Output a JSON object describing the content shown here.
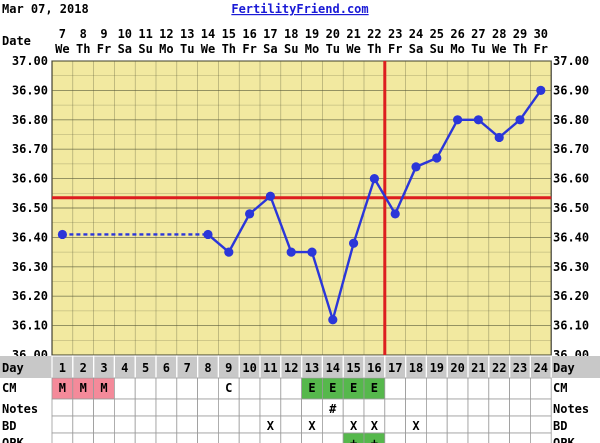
{
  "header": {
    "date": "Mar 07, 2018",
    "site": "FertilityFriend.com"
  },
  "labels": {
    "date_row": "Date",
    "day_row": "Day",
    "cm_row": "CM",
    "notes_row": "Notes",
    "bd_row": "BD",
    "opk_row": "OPK"
  },
  "dates": [
    "7",
    "8",
    "9",
    "10",
    "11",
    "12",
    "13",
    "14",
    "15",
    "16",
    "17",
    "18",
    "19",
    "20",
    "21",
    "22",
    "23",
    "24",
    "25",
    "26",
    "27",
    "28",
    "29",
    "30"
  ],
  "weekdays": [
    "We",
    "Th",
    "Fr",
    "Sa",
    "Su",
    "Mo",
    "Tu",
    "We",
    "Th",
    "Fr",
    "Sa",
    "Su",
    "Mo",
    "Tu",
    "We",
    "Th",
    "Fr",
    "Sa",
    "Su",
    "Mo",
    "Tu",
    "We",
    "Th",
    "Fr"
  ],
  "cycle_days": [
    "1",
    "2",
    "3",
    "4",
    "5",
    "6",
    "7",
    "8",
    "9",
    "10",
    "11",
    "12",
    "13",
    "14",
    "15",
    "16",
    "17",
    "18",
    "19",
    "20",
    "21",
    "22",
    "23",
    "24"
  ],
  "cm": [
    "M",
    "M",
    "M",
    "",
    "",
    "",
    "",
    "",
    "C",
    "",
    "",
    "",
    "E",
    "E",
    "E",
    "E",
    "",
    "",
    "",
    "",
    "",
    "",
    "",
    ""
  ],
  "notes": [
    "",
    "",
    "",
    "",
    "",
    "",
    "",
    "",
    "",
    "",
    "",
    "",
    "",
    "#",
    "",
    "",
    "",
    "",
    "",
    "",
    "",
    "",
    "",
    ""
  ],
  "bd": [
    "",
    "",
    "",
    "",
    "",
    "",
    "",
    "",
    "",
    "",
    "X",
    "",
    "X",
    "",
    "X",
    "X",
    "",
    "X",
    "",
    "",
    "",
    "",
    "",
    ""
  ],
  "opk": [
    "",
    "",
    "",
    "",
    "",
    "",
    "",
    "",
    "",
    "",
    "",
    "",
    "",
    "",
    "+",
    "+",
    "",
    "",
    "",
    "",
    "",
    "",
    "",
    ""
  ],
  "colors": {
    "plot_bg": "#f2e9a0",
    "grid": "#5a5a3a",
    "line": "#2b36d9",
    "coverline": "#dd1f1f",
    "menses_cell": "#f48a9a",
    "egg_white_cell": "#56b84c",
    "header_gray": "#c8c8c8",
    "site_link": "#1a1ad6"
  },
  "chart_data": {
    "type": "line",
    "title": "",
    "xlabel": "Day",
    "ylabel": "",
    "ylim": [
      36.0,
      37.0
    ],
    "yticks": [
      "36.00",
      "36.10",
      "36.20",
      "36.30",
      "36.40",
      "36.50",
      "36.60",
      "36.70",
      "36.80",
      "36.90",
      "37.00"
    ],
    "x": [
      1,
      2,
      3,
      4,
      5,
      6,
      7,
      8,
      9,
      10,
      11,
      12,
      13,
      14,
      15,
      16,
      17,
      18,
      19,
      20,
      21,
      22,
      23,
      24
    ],
    "values": [
      36.41,
      null,
      null,
      null,
      null,
      null,
      null,
      36.41,
      36.35,
      36.48,
      36.54,
      36.35,
      36.35,
      36.12,
      36.38,
      36.6,
      36.48,
      36.64,
      36.67,
      36.8,
      36.8,
      36.74,
      36.8,
      36.9
    ],
    "interpolated_segment": [
      1,
      8
    ],
    "coverline": 36.535,
    "ovulation_day": 17,
    "grid": true
  }
}
